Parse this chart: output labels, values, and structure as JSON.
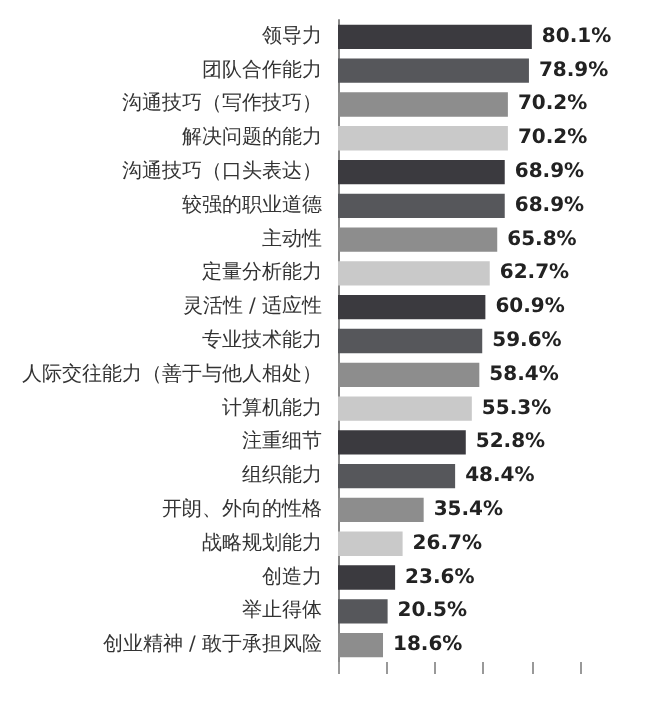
{
  "chart_data": {
    "type": "bar",
    "orientation": "horizontal",
    "categories": [
      "领导力",
      "团队合作能力",
      "沟通技巧（写作技巧）",
      "解决问题的能力",
      "沟通技巧（口头表达）",
      "较强的职业道德",
      "主动性",
      "定量分析能力",
      "灵活性 / 适应性",
      "专业技术能力",
      "人际交往能力（善于与他人相处）",
      "计算机能力",
      "注重细节",
      "组织能力",
      "开朗、外向的性格",
      "战略规划能力",
      "创造力",
      "举止得体",
      "创业精神 / 敢于承担风险"
    ],
    "values": [
      80.1,
      78.9,
      70.2,
      70.2,
      68.9,
      68.9,
      65.8,
      62.7,
      60.9,
      59.6,
      58.4,
      55.3,
      52.8,
      48.4,
      35.4,
      26.7,
      23.6,
      20.5,
      18.6
    ],
    "value_labels": [
      "80.1%",
      "78.9%",
      "70.2%",
      "70.2%",
      "68.9%",
      "68.9%",
      "65.8%",
      "62.7%",
      "60.9%",
      "59.6%",
      "58.4%",
      "55.3%",
      "52.8%",
      "48.4%",
      "35.4%",
      "26.7%",
      "23.6%",
      "20.5%",
      "18.6%"
    ],
    "colors": [
      "#3b3a3f",
      "#56575b",
      "#8d8d8d",
      "#c9c9c9",
      "#3b3a3f",
      "#56575b",
      "#8d8d8d",
      "#c9c9c9",
      "#3b3a3f",
      "#56575b",
      "#8d8d8d",
      "#c9c9c9",
      "#3b3a3f",
      "#56575b",
      "#8d8d8d",
      "#c9c9c9",
      "#3b3a3f",
      "#56575b",
      "#8d8d8d"
    ],
    "xticks": [
      {
        "value": 0,
        "label": null
      },
      {
        "value": 20,
        "label": null
      },
      {
        "value": 40,
        "label": null
      },
      {
        "value": 60,
        "label": null
      },
      {
        "value": 80,
        "label": null
      },
      {
        "value": 100,
        "label": null
      }
    ],
    "tick_labels": "y",
    "grid": false
  }
}
